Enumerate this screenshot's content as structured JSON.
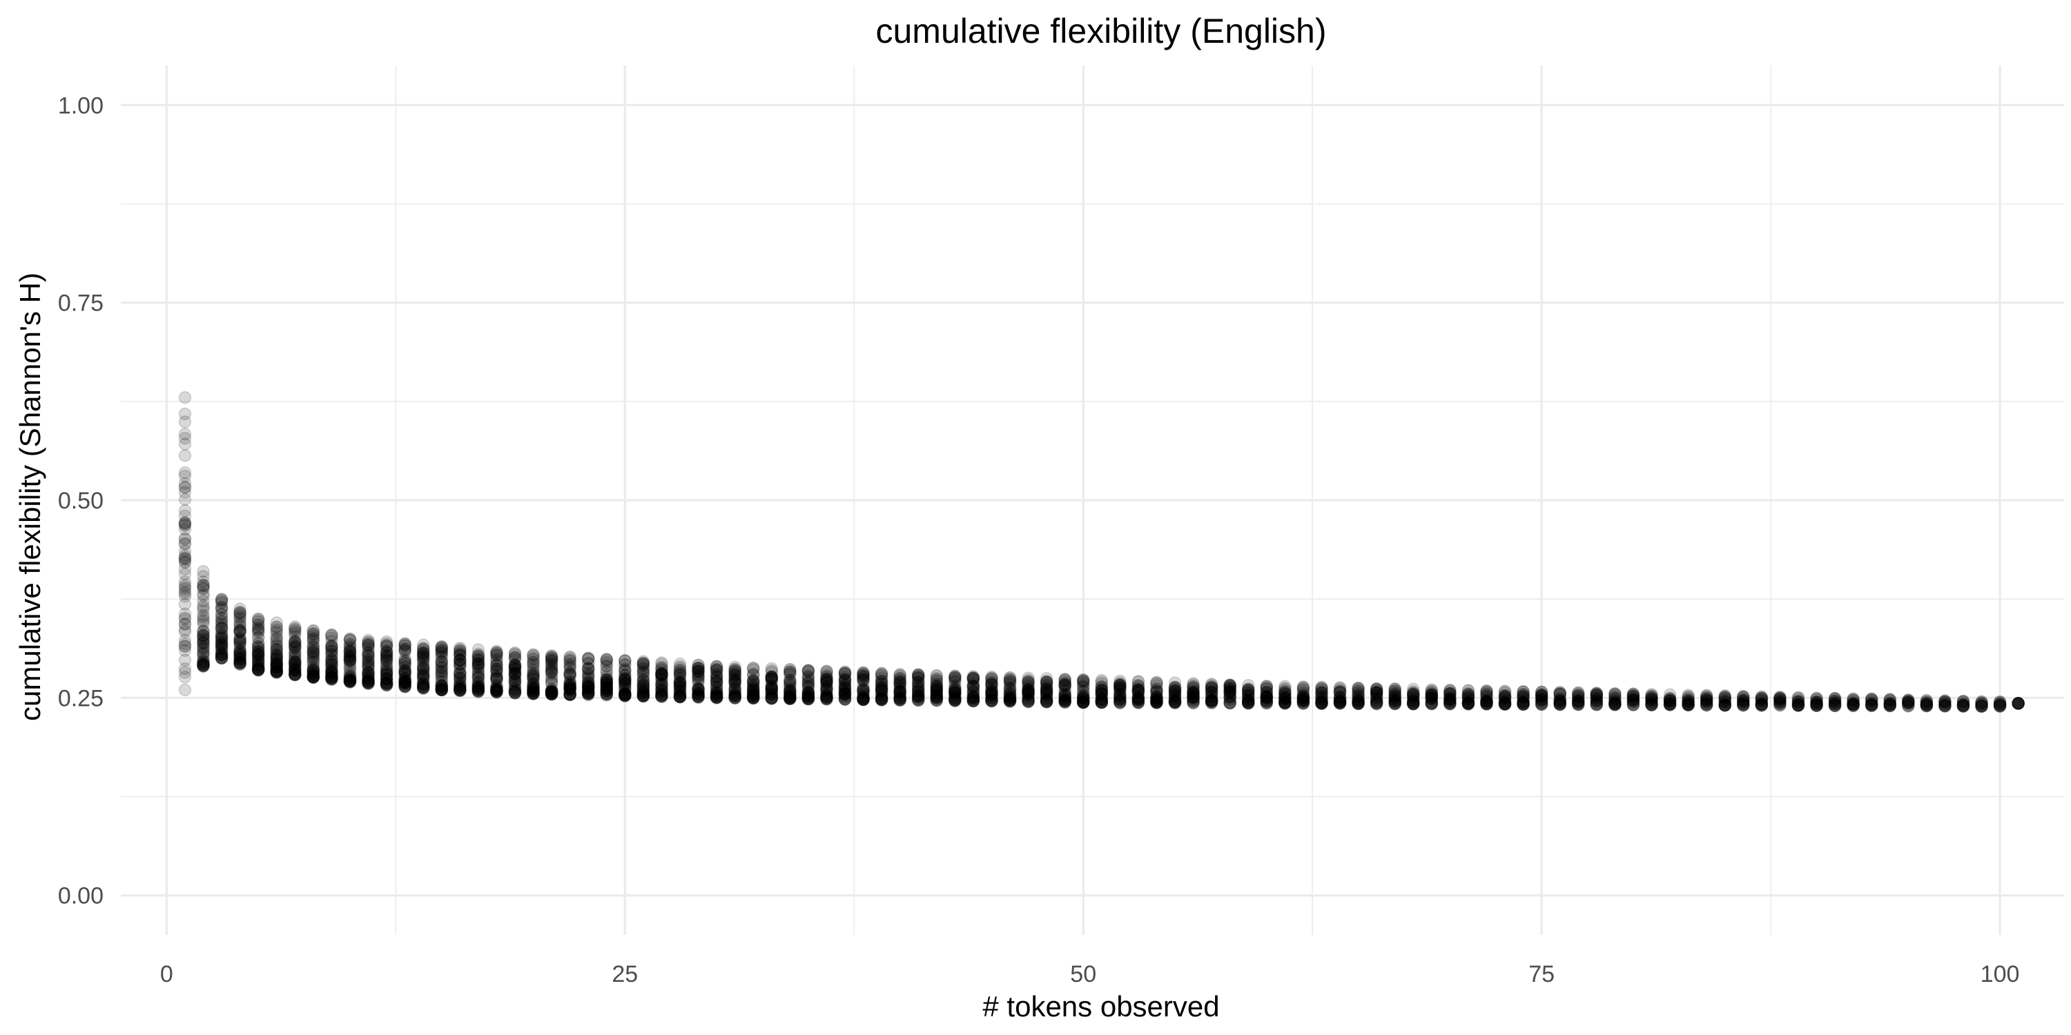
{
  "chart_data": {
    "type": "scatter",
    "title": "cumulative flexibility (English)",
    "xlabel": "# tokens observed",
    "ylabel": "cumulative flexibility (Shannon's H)",
    "xlim": [
      -2.5,
      103.5
    ],
    "ylim": [
      -0.05,
      1.05
    ],
    "x_ticks": [
      0,
      25,
      50,
      75,
      100
    ],
    "x_tick_labels": [
      "0",
      "25",
      "50",
      "75",
      "100"
    ],
    "y_ticks": [
      0.0,
      0.25,
      0.5,
      0.75,
      1.0
    ],
    "y_tick_labels": [
      "0.00",
      "0.25",
      "0.50",
      "0.75",
      "1.00"
    ],
    "grid": true,
    "point_color": "#000000",
    "point_alpha": 0.15,
    "series_summary": {
      "x_range": [
        1,
        101
      ],
      "note_values": [
        {
          "x": 1,
          "min": 0.26,
          "max": 0.63
        },
        {
          "x": 2,
          "min": 0.29,
          "max": 0.41
        },
        {
          "x": 3,
          "min": 0.3,
          "max": 0.375
        },
        {
          "x": 5,
          "min": 0.285,
          "max": 0.35
        },
        {
          "x": 10,
          "min": 0.27,
          "max": 0.325
        },
        {
          "x": 15,
          "min": 0.26,
          "max": 0.315
        },
        {
          "x": 20,
          "min": 0.255,
          "max": 0.305
        },
        {
          "x": 30,
          "min": 0.25,
          "max": 0.29
        },
        {
          "x": 40,
          "min": 0.247,
          "max": 0.28
        },
        {
          "x": 50,
          "min": 0.244,
          "max": 0.273
        },
        {
          "x": 60,
          "min": 0.243,
          "max": 0.265
        },
        {
          "x": 70,
          "min": 0.242,
          "max": 0.26
        },
        {
          "x": 80,
          "min": 0.241,
          "max": 0.255
        },
        {
          "x": 90,
          "min": 0.24,
          "max": 0.25
        },
        {
          "x": 100,
          "min": 0.239,
          "max": 0.245
        },
        {
          "x": 101,
          "min": 0.243,
          "max": 0.243
        }
      ]
    }
  }
}
